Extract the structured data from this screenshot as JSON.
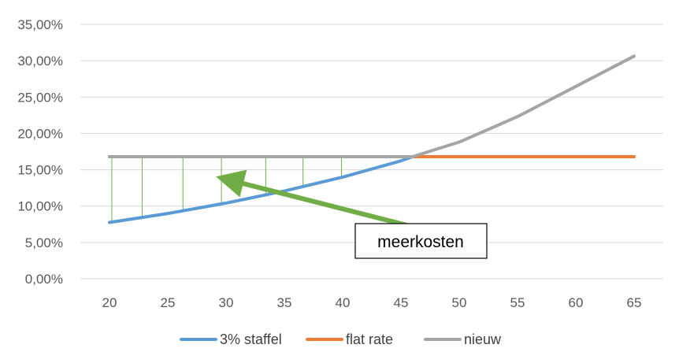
{
  "chart_data": {
    "type": "line",
    "x": [
      20,
      25,
      30,
      35,
      40,
      45,
      50,
      55,
      60,
      65
    ],
    "ylim": [
      0,
      0.35
    ],
    "y_ticks": [
      0,
      0.05,
      0.1,
      0.15,
      0.2,
      0.25,
      0.3,
      0.35
    ],
    "y_tick_labels": [
      "0,00%",
      "5,00%",
      "10,00%",
      "15,00%",
      "20,00%",
      "25,00%",
      "30,00%",
      "35,00%"
    ],
    "x_tick_labels": [
      "20",
      "25",
      "30",
      "35",
      "40",
      "45",
      "50",
      "55",
      "60",
      "65"
    ],
    "grid": true,
    "legend_position": "bottom",
    "series": [
      {
        "name": "3% staffel",
        "color": "#5B9BD5",
        "x": [
          20,
          25,
          30,
          35,
          40,
          45,
          46
        ],
        "values": [
          0.0775,
          0.0898,
          0.1041,
          0.1207,
          0.1399,
          0.1622,
          0.168
        ]
      },
      {
        "name": "flat rate",
        "color": "#ED7D31",
        "x": [
          20,
          25,
          30,
          35,
          40,
          45,
          50,
          55,
          60,
          65
        ],
        "values": [
          0.168,
          0.168,
          0.168,
          0.168,
          0.168,
          0.168,
          0.168,
          0.168,
          0.168,
          0.168
        ]
      },
      {
        "name": "nieuw",
        "color": "#A5A5A5",
        "x": [
          20,
          25,
          30,
          35,
          40,
          45,
          46,
          50,
          55,
          60,
          65
        ],
        "values": [
          0.168,
          0.168,
          0.168,
          0.168,
          0.168,
          0.168,
          0.168,
          0.1881,
          0.2231,
          0.2646,
          0.3063
        ]
      }
    ],
    "annotation": {
      "text": "meerkosten",
      "arrow_color": "#70AD47",
      "arrow_from": [
        46.4,
        0.07
      ],
      "arrow_to": [
        30.5,
        0.135
      ]
    },
    "hatch_x": [
      20.2,
      22.8,
      26.3,
      29.6,
      33.4,
      36.6,
      39.9
    ],
    "hatch_color": "#70AD47"
  }
}
